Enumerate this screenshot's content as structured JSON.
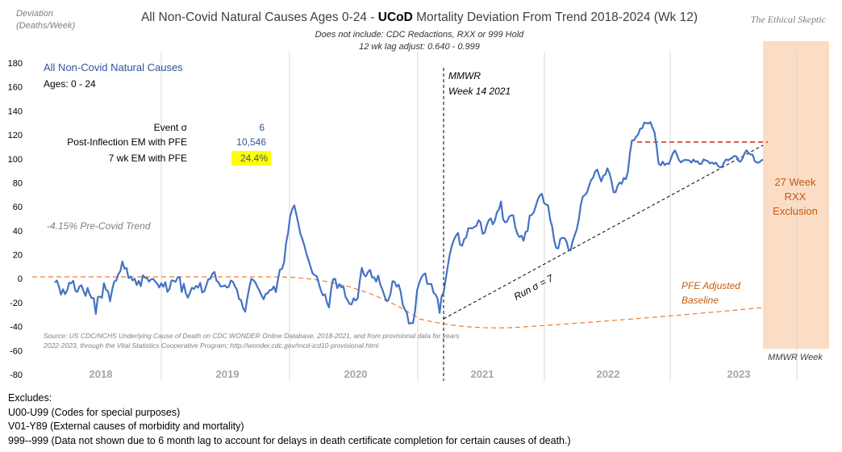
{
  "chart_data": {
    "type": "line",
    "title_prefix": "All Non-Covid Natural Causes Ages 0-24 - ",
    "title_bold": "UCoD",
    "title_suffix": " Mortality Deviation From Trend  2018-2024 (Wk 12)",
    "subtitle_1": "Does not include: CDC Redactions,  RXX or 999 Hold",
    "subtitle_2": "12 wk lag adjust: 0.640 - 0.999",
    "brand": "The Ethical Skeptic",
    "ylabel_1": "Deviation",
    "ylabel_2": "(Deaths/Week)",
    "xlabel": "MMWR Week",
    "ylim": [
      -80,
      180
    ],
    "yticks": [
      "180",
      "160",
      "140",
      "120",
      "100",
      "80",
      "60",
      "40",
      "20",
      "0",
      "-20",
      "-40",
      "-60",
      "-80"
    ],
    "year_labels": [
      "2018",
      "2019",
      "2020",
      "2021",
      "2022",
      "2023"
    ],
    "colors": {
      "series": "#4472C4",
      "baseline": "#ED7D31",
      "run_line": "#000000",
      "level_line": "#C00000",
      "exclusion_fill": "#FBDCC4",
      "exclusion_text": "#C55A11",
      "highlight": "#FFFF00"
    },
    "series": [
      {
        "name": "All Non-Covid Natural Causes",
        "x_week": [
          1,
          2,
          3,
          4,
          5,
          6,
          7,
          8,
          9,
          10,
          11,
          12,
          13,
          14,
          15,
          16,
          17,
          18,
          19,
          20,
          21,
          22,
          23,
          24,
          25,
          26,
          27,
          28,
          29,
          30,
          31,
          32,
          33,
          34,
          35,
          36,
          37,
          38,
          39,
          40,
          41,
          42,
          43,
          44,
          45,
          46,
          47,
          48,
          49,
          50,
          51,
          52,
          53,
          54,
          55,
          56,
          57,
          58,
          59,
          60,
          61,
          62,
          63,
          64,
          65,
          66,
          67,
          68,
          69,
          70,
          71,
          72,
          73,
          74,
          75,
          76,
          77,
          78,
          79,
          80,
          81,
          82,
          83,
          84,
          85,
          86,
          87,
          88,
          89,
          90,
          91,
          92,
          93,
          94,
          95,
          96,
          97,
          98,
          99,
          100,
          101,
          102,
          103,
          104,
          105,
          106,
          107,
          108,
          109,
          110,
          111,
          112,
          113,
          114,
          115,
          116,
          117,
          118,
          119,
          120,
          121,
          122,
          123,
          124,
          125,
          126,
          127,
          128,
          129,
          130,
          131,
          132,
          133,
          134,
          135,
          136,
          137,
          138,
          139,
          140,
          141,
          142,
          143,
          144,
          145,
          146,
          147,
          148,
          149,
          150,
          151,
          152,
          153,
          154,
          155,
          156,
          157,
          158,
          159,
          160,
          161,
          162,
          163,
          164,
          165,
          166,
          167,
          168,
          169,
          170,
          171,
          172,
          173,
          174,
          175,
          176,
          177,
          178,
          179,
          180,
          181,
          182,
          183,
          184,
          185,
          186,
          187,
          188,
          189,
          190,
          191,
          192,
          193,
          194,
          195,
          196,
          197,
          198,
          199,
          200,
          201,
          202,
          203,
          204,
          205,
          206,
          207,
          208,
          209,
          210,
          211,
          212,
          213,
          214,
          215,
          216,
          217,
          218,
          219,
          220,
          221,
          222,
          223,
          224,
          225,
          226,
          227,
          228,
          229,
          230,
          231,
          232,
          233,
          234,
          235,
          236,
          237,
          238,
          239,
          240,
          241,
          242,
          243,
          244,
          245,
          246,
          247,
          248,
          249,
          250,
          251,
          252,
          253,
          254,
          255,
          256,
          257,
          258,
          259,
          260,
          261,
          262,
          263,
          264,
          265,
          266,
          267,
          268,
          269,
          270,
          271,
          272,
          273,
          274,
          275,
          276,
          277,
          278,
          279,
          280,
          281,
          282,
          283,
          284,
          285,
          286,
          287,
          288,
          289,
          290,
          291,
          292,
          293,
          294,
          295,
          296,
          297,
          298,
          299,
          300,
          301,
          302,
          303,
          304,
          305,
          306,
          307,
          308,
          309,
          310,
          311,
          312,
          313,
          314,
          315,
          316,
          317,
          318,
          319,
          320,
          321,
          322,
          323,
          324,
          325,
          326,
          327,
          328,
          329,
          330,
          331,
          332,
          333,
          334,
          335,
          336,
          337,
          338,
          339,
          340,
          341,
          342,
          343,
          344,
          345,
          346,
          347
        ],
        "values": [
          -3.2,
          -1.5,
          -6.7,
          -13.3,
          -8.9,
          -13.0,
          -9.8,
          -3.4,
          -3.8,
          -1.8,
          -10.1,
          -11.1,
          -6.6,
          -5.6,
          -10.2,
          -14.4,
          -7.7,
          -12.9,
          -16.2,
          -16.2,
          -29.4,
          -15.3,
          -14.9,
          -16.0,
          -3.8,
          -9.3,
          -10.4,
          -18.9,
          -9.2,
          -2.4,
          -1.6,
          3.8,
          6.2,
          14.4,
          8.4,
          8.9,
          0.5,
          1.7,
          -1.4,
          -0.1,
          -5.3,
          -1.8,
          -6.3,
          2.8,
          0.7,
          0.6,
          -2.5,
          -0.6,
          -0.2,
          -2.3,
          -4.0,
          -7.4,
          -3.8,
          -6.8,
          -3.0,
          -11.0,
          -8.5,
          -1.5,
          -1.7,
          -2.7,
          1.1,
          1.2,
          -11.1,
          -4.2,
          -12.2,
          -15.9,
          -11.8,
          -7.6,
          -8.7,
          -6.0,
          -7.6,
          -3.5,
          -11.5,
          -10.6,
          -5.6,
          -0.4,
          -0.1,
          4.1,
          5.6,
          -1.8,
          -3.1,
          -6.5,
          -6.4,
          -5.6,
          -7.4,
          -6.8,
          -1.5,
          -2.6,
          -6.4,
          -9.3,
          -17.0,
          -18.0,
          -24.7,
          -27.6,
          -16.7,
          -7.5,
          -0.2,
          -1.1,
          -3.2,
          -7.0,
          -10.2,
          -14.0,
          -17.2,
          -12.8,
          -12.1,
          -9.6,
          -9.3,
          -6.5,
          -11.2,
          -0.7,
          7.6,
          8.1,
          13.5,
          29.6,
          38.7,
          52.3,
          58.0,
          61.2,
          53.8,
          45.7,
          37.3,
          32.8,
          27.1,
          20.4,
          15.0,
          9.5,
          4.2,
          2.9,
          2.0,
          -4.0,
          -9.9,
          -13.9,
          -13.1,
          -20.3,
          -24.0,
          -8.6,
          -0.4,
          -0.2,
          -7.9,
          -4.6,
          -7.3,
          -6.4,
          -14.9,
          -17.9,
          -21.1,
          -21.4,
          -16.4,
          -18.3,
          -16.2,
          -1.8,
          8.9,
          3.5,
          1.9,
          5.4,
          7.3,
          1.0,
          1.1,
          -2.5,
          2.6,
          -4.9,
          -8.9,
          -14.0,
          -18.7,
          -17.7,
          -12.7,
          -2.1,
          -2.6,
          -6.7,
          -5.0,
          -10.9,
          -21.8,
          -25.5,
          -28.6,
          -37.5,
          -37.0,
          -37.1,
          -27.2,
          -9.6,
          -3.9,
          0.5,
          3.3,
          4.3,
          -4.4,
          -4.4,
          -4.5,
          -11.7,
          -13.2,
          -16.6,
          -28.6,
          -14.6,
          -11.5,
          -0.2,
          10.3,
          20.7,
          27.5,
          32.4,
          35.9,
          38.2,
          28.3,
          27.5,
          32.9,
          34.5,
          42.0,
          42.1,
          42.0,
          43.2,
          44.0,
          48.7,
          47.0,
          37.4,
          38.3,
          44.3,
          48.8,
          50.3,
          45.3,
          48.4,
          55.4,
          57.8,
          64.4,
          49.7,
          47.0,
          47.7,
          51.7,
          52.8,
          52.8,
          42.8,
          37.4,
          34.7,
          35.8,
          31.6,
          38.8,
          39.8,
          52.5,
          53.2,
          55.4,
          60.5,
          66.2,
          69.5,
          70.8,
          63.2,
          61.9,
          61.1,
          49.7,
          43.5,
          31.6,
          25.7,
          25.2,
          33.3,
          34.0,
          33.9,
          31.0,
          24.4,
          23.6,
          31.2,
          36.1,
          41.2,
          49.1,
          61.9,
          68.5,
          69.8,
          71.8,
          77.3,
          82.1,
          84.3,
          89.3,
          91.1,
          85.8,
          81.2,
          86.0,
          86.9,
          92.1,
          88.0,
          81.3,
          72.0,
          72.2,
          77.5,
          80.3,
          79.1,
          84.0,
          83.0,
          89.1,
          104.8,
          115.4,
          115.5,
          118.3,
          120.3,
          125.1,
          125.5,
          130.2,
          129.8,
          129.5,
          130.6,
          126.2,
          122.2,
          111.0,
          96.0,
          94.6,
          97.6,
          94.8,
          96.1,
          95.7,
          99.9,
          104.7,
          107.0,
          103.3,
          98.8,
          97.0,
          98.6,
          99.1,
          98.9,
          98.7,
          96.8,
          99.4,
          97.5,
          98.0,
          95.7,
          95.9,
          99.5,
          98.7,
          98.2,
          96.2,
          97.0,
          95.7,
          96.9,
          94.1,
          93.0,
          93.2,
          97.0,
          99.6,
          98.8,
          100.0,
          100.9,
          102.4,
          102.1,
          98.4,
          97.6,
          100.3,
          104.6,
          107.1,
          104.7,
          103.6,
          103.4,
          98.1,
          96.9,
          96.9,
          98.2,
          99.5
        ]
      }
    ],
    "annotations": {
      "legend_title": "All Non-Covid Natural Causes",
      "ages": "Ages: 0 - 24",
      "event_sigma_label": "Event σ",
      "event_sigma_value": "6",
      "post_inflection_label": "Post-Inflection EM with PFE",
      "post_inflection_value": "10,546",
      "seven_wk_label": "7 wk EM with PFE",
      "seven_wk_value": "24.4%",
      "pre_covid_trend": "-4.15% Pre-Covid Trend",
      "mmwr_line_1": "MMWR",
      "mmwr_line_2": "Week 14 2021",
      "run_sigma": "Run σ = 7",
      "pfe_line_1": "PFE Adjusted",
      "pfe_line_2": "Baseline",
      "rxx_line_1": "27 Week",
      "rxx_line_2": "RXX",
      "rxx_line_3": "Exclusion",
      "source_1": "Source: US CDC/NCHS Underlying Cause of Death on CDC WONDER Online Database, 2018-2021, and from provisional data for years",
      "source_2": "2022-2023, through the Vital Statistics Cooperative Program; http://wonder.cdc.gov/mcd-icd10-provisional.html"
    }
  },
  "excludes": {
    "title": "Excludes:",
    "line_1": "U00-U99 (Codes for special purposes)",
    "line_2": "V01-Y89 (External causes of morbidity and mortality)",
    "line_3": "999--999 (Data not shown due to 6 month lag to account for delays in death certificate completion for certain causes of death.)"
  }
}
